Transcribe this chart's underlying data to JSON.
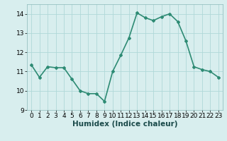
{
  "x": [
    0,
    1,
    2,
    3,
    4,
    5,
    6,
    7,
    8,
    9,
    10,
    11,
    12,
    13,
    14,
    15,
    16,
    17,
    18,
    19,
    20,
    21,
    22,
    23
  ],
  "y": [
    11.35,
    10.7,
    11.25,
    11.2,
    11.2,
    10.6,
    10.0,
    9.85,
    9.85,
    9.45,
    11.0,
    11.85,
    12.75,
    14.05,
    13.8,
    13.65,
    13.85,
    14.0,
    13.6,
    12.6,
    11.25,
    11.1,
    11.0,
    10.7
  ],
  "line_color": "#2e8b74",
  "marker": "D",
  "marker_size": 2.0,
  "bg_color": "#d8eeee",
  "grid_color": "#b0d8d8",
  "xlabel": "Humidex (Indice chaleur)",
  "ylim": [
    9,
    14.5
  ],
  "yticks": [
    9,
    10,
    11,
    12,
    13,
    14
  ],
  "xticks": [
    0,
    1,
    2,
    3,
    4,
    5,
    6,
    7,
    8,
    9,
    10,
    11,
    12,
    13,
    14,
    15,
    16,
    17,
    18,
    19,
    20,
    21,
    22,
    23
  ],
  "linewidth": 1.2,
  "tick_labelsize": 6.5,
  "xlabel_fontsize": 7.5
}
